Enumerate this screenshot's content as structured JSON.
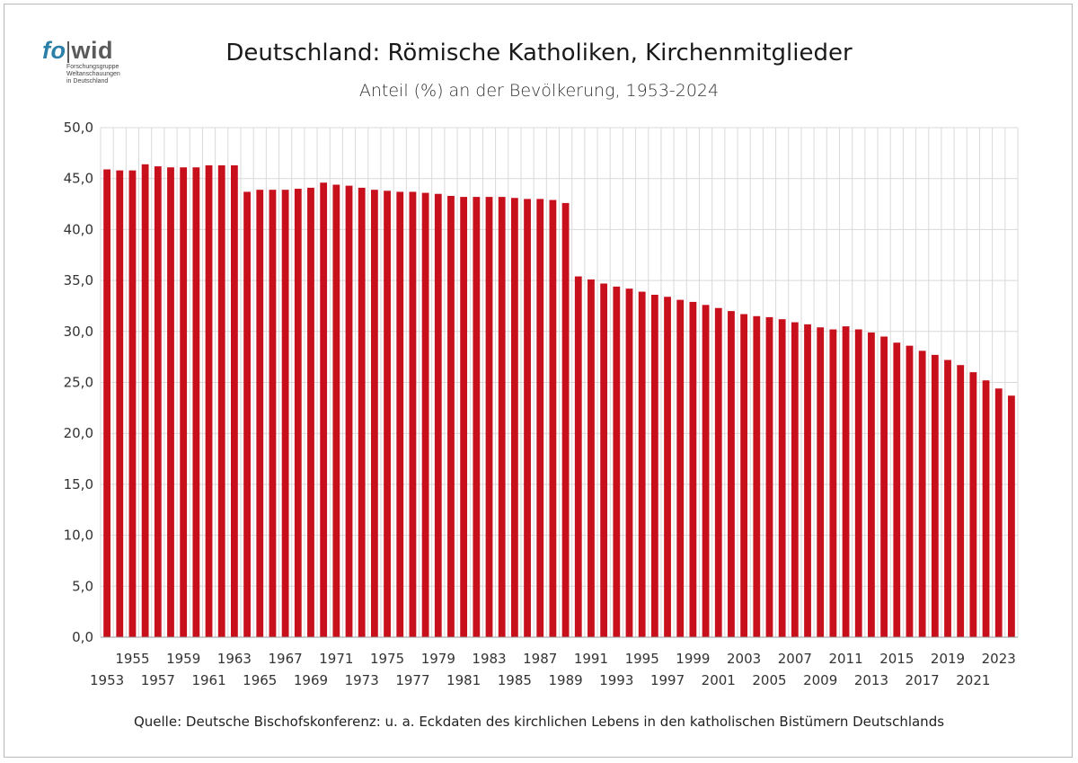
{
  "logo": {
    "fo": "fo",
    "wid": "wid",
    "lines": [
      "Forschungsgruppe",
      "Weltanschauungen",
      "in Deutschland"
    ]
  },
  "source": "Quelle: Deutsche Bischofskonferenz: u. a.  Eckdaten des kirchlichen Lebens in den katholischen Bistümern Deutschlands",
  "colors": {
    "bar": "#c8101c",
    "grid": "#d9d9d9",
    "axis": "#999999"
  },
  "chart_data": {
    "type": "bar",
    "title": "Deutschland: Römische Katholiken, Kirchenmitglieder",
    "subtitle": "Anteil (%) an der Bevölkerung, 1953-2024",
    "xlabel": "",
    "ylabel": "",
    "ylim": [
      0,
      50
    ],
    "yticks": [
      "0,0",
      "5,0",
      "10,0",
      "15,0",
      "20,0",
      "25,0",
      "30,0",
      "35,0",
      "40,0",
      "45,0",
      "50,0"
    ],
    "grid": true,
    "categories": [
      1953,
      1954,
      1955,
      1956,
      1957,
      1958,
      1959,
      1960,
      1961,
      1962,
      1963,
      1964,
      1965,
      1966,
      1967,
      1968,
      1969,
      1970,
      1971,
      1972,
      1973,
      1974,
      1975,
      1976,
      1977,
      1978,
      1979,
      1980,
      1981,
      1982,
      1983,
      1984,
      1985,
      1986,
      1987,
      1988,
      1989,
      1990,
      1991,
      1992,
      1993,
      1994,
      1995,
      1996,
      1997,
      1998,
      1999,
      2000,
      2001,
      2002,
      2003,
      2004,
      2005,
      2006,
      2007,
      2008,
      2009,
      2010,
      2011,
      2012,
      2013,
      2014,
      2015,
      2016,
      2017,
      2018,
      2019,
      2020,
      2021,
      2022,
      2023,
      2024
    ],
    "values": [
      45.9,
      45.8,
      45.8,
      46.4,
      46.2,
      46.1,
      46.1,
      46.1,
      46.3,
      46.3,
      46.3,
      43.7,
      43.9,
      43.9,
      43.9,
      44.0,
      44.1,
      44.6,
      44.4,
      44.3,
      44.1,
      43.9,
      43.8,
      43.7,
      43.7,
      43.6,
      43.5,
      43.3,
      43.2,
      43.2,
      43.2,
      43.2,
      43.1,
      43.0,
      43.0,
      42.9,
      42.6,
      35.4,
      35.1,
      34.7,
      34.4,
      34.2,
      33.9,
      33.6,
      33.4,
      33.1,
      32.9,
      32.6,
      32.3,
      32.0,
      31.7,
      31.5,
      31.4,
      31.2,
      30.9,
      30.7,
      30.4,
      30.2,
      30.5,
      30.2,
      29.9,
      29.5,
      28.9,
      28.6,
      28.1,
      27.7,
      27.2,
      26.7,
      26.0,
      25.2,
      24.4,
      23.7
    ],
    "x_labels_upper": [
      1955,
      1959,
      1963,
      1967,
      1971,
      1975,
      1979,
      1983,
      1987,
      1991,
      1995,
      1999,
      2003,
      2007,
      2011,
      2015,
      2019,
      2023
    ],
    "x_labels_lower": [
      1953,
      1957,
      1961,
      1965,
      1969,
      1973,
      1977,
      1981,
      1985,
      1989,
      1993,
      1997,
      2001,
      2005,
      2009,
      2013,
      2017,
      2021
    ]
  }
}
